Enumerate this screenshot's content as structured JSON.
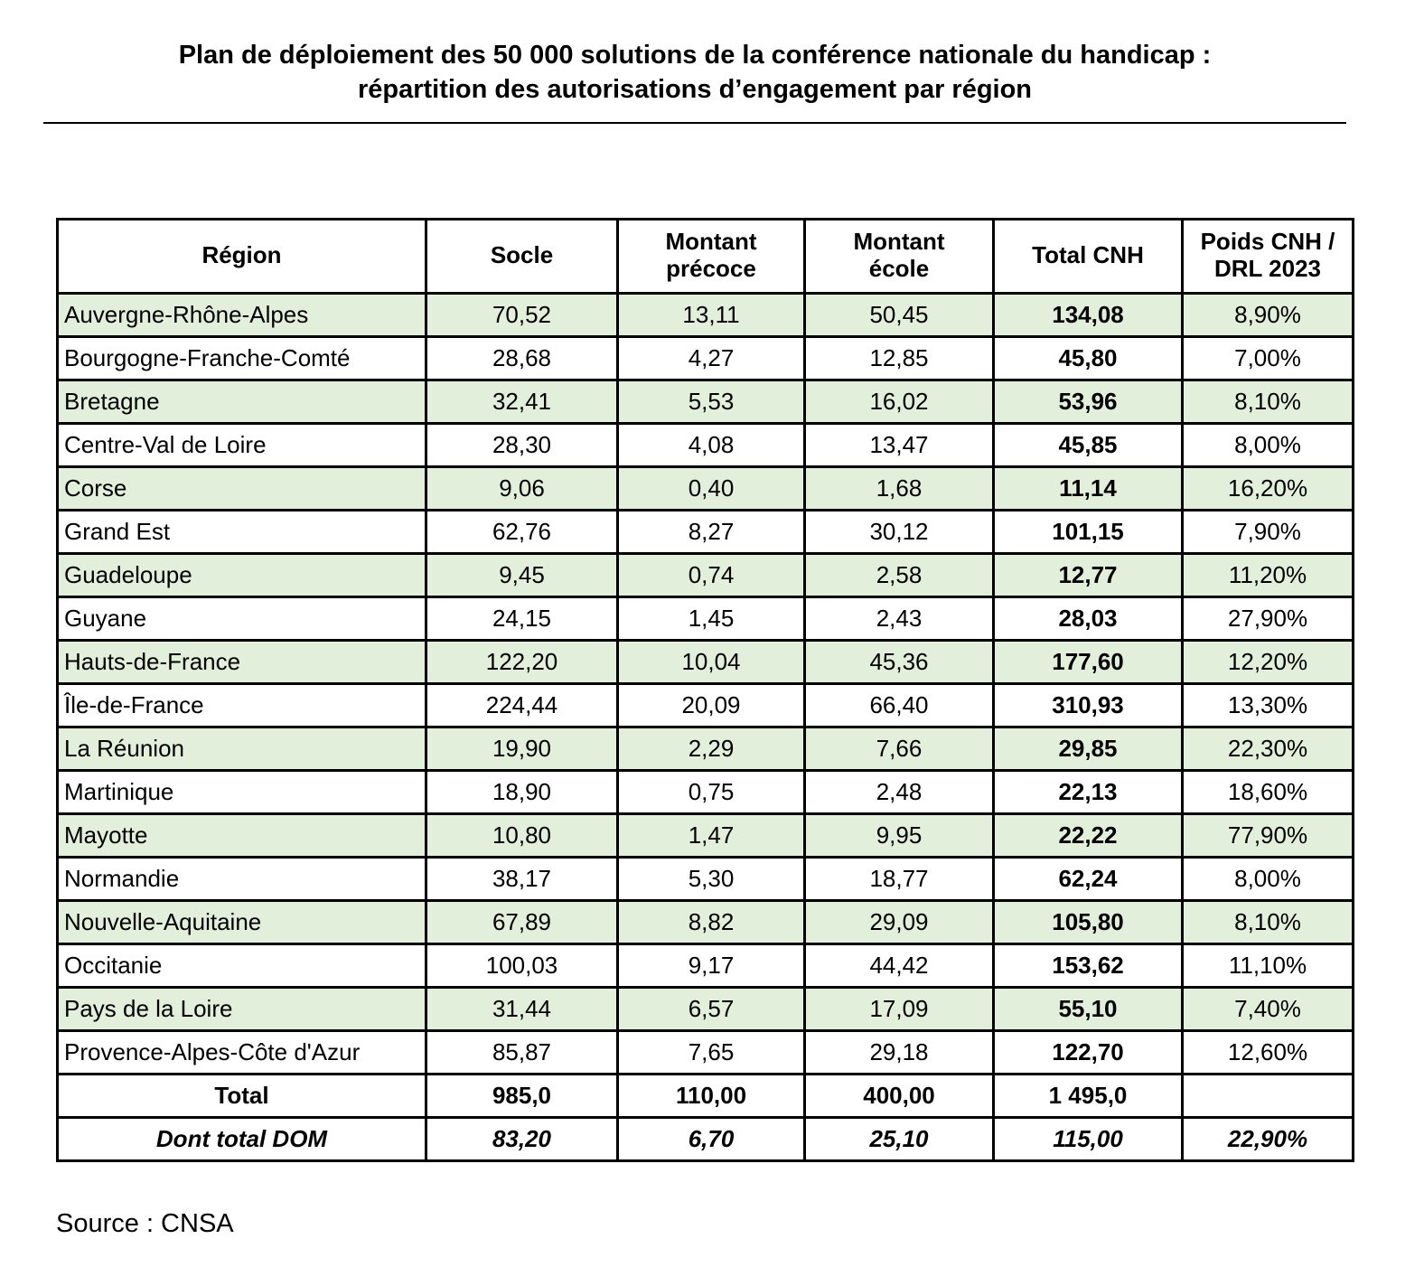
{
  "title": {
    "text": "Plan de déploiement des 50 000 solutions de la conférence nationale du handicap :\nrépartition des autorisations d’engagement par région"
  },
  "table": {
    "columns": {
      "region": "Région",
      "socle": "Socle",
      "precoce": "Montant\nprécoce",
      "ecole": "Montant\nécole",
      "total": "Total CNH",
      "poids": "Poids CNH /\nDRL 2023"
    },
    "rows": [
      {
        "region": "Auvergne-Rhône-Alpes",
        "socle": "70,52",
        "precoce": "13,11",
        "ecole": "50,45",
        "total": "134,08",
        "poids": "8,90%",
        "shaded": true
      },
      {
        "region": "Bourgogne-Franche-Comté",
        "socle": "28,68",
        "precoce": "4,27",
        "ecole": "12,85",
        "total": "45,80",
        "poids": "7,00%",
        "shaded": false
      },
      {
        "region": "Bretagne",
        "socle": "32,41",
        "precoce": "5,53",
        "ecole": "16,02",
        "total": "53,96",
        "poids": "8,10%",
        "shaded": true
      },
      {
        "region": "Centre-Val de Loire",
        "socle": "28,30",
        "precoce": "4,08",
        "ecole": "13,47",
        "total": "45,85",
        "poids": "8,00%",
        "shaded": false
      },
      {
        "region": "Corse",
        "socle": "9,06",
        "precoce": "0,40",
        "ecole": "1,68",
        "total": "11,14",
        "poids": "16,20%",
        "shaded": true
      },
      {
        "region": "Grand Est",
        "socle": "62,76",
        "precoce": "8,27",
        "ecole": "30,12",
        "total": "101,15",
        "poids": "7,90%",
        "shaded": false
      },
      {
        "region": "Guadeloupe",
        "socle": "9,45",
        "precoce": "0,74",
        "ecole": "2,58",
        "total": "12,77",
        "poids": "11,20%",
        "shaded": true
      },
      {
        "region": "Guyane",
        "socle": "24,15",
        "precoce": "1,45",
        "ecole": "2,43",
        "total": "28,03",
        "poids": "27,90%",
        "shaded": false
      },
      {
        "region": "Hauts-de-France",
        "socle": "122,20",
        "precoce": "10,04",
        "ecole": "45,36",
        "total": "177,60",
        "poids": "12,20%",
        "shaded": true
      },
      {
        "region": "Île-de-France",
        "socle": "224,44",
        "precoce": "20,09",
        "ecole": "66,40",
        "total": "310,93",
        "poids": "13,30%",
        "shaded": false
      },
      {
        "region": "La Réunion",
        "socle": "19,90",
        "precoce": "2,29",
        "ecole": "7,66",
        "total": "29,85",
        "poids": "22,30%",
        "shaded": true
      },
      {
        "region": "Martinique",
        "socle": "18,90",
        "precoce": "0,75",
        "ecole": "2,48",
        "total": "22,13",
        "poids": "18,60%",
        "shaded": false
      },
      {
        "region": "Mayotte",
        "socle": "10,80",
        "precoce": "1,47",
        "ecole": "9,95",
        "total": "22,22",
        "poids": "77,90%",
        "shaded": true
      },
      {
        "region": "Normandie",
        "socle": "38,17",
        "precoce": "5,30",
        "ecole": "18,77",
        "total": "62,24",
        "poids": "8,00%",
        "shaded": false
      },
      {
        "region": "Nouvelle-Aquitaine",
        "socle": "67,89",
        "precoce": "8,82",
        "ecole": "29,09",
        "total": "105,80",
        "poids": "8,10%",
        "shaded": true
      },
      {
        "region": "Occitanie",
        "socle": "100,03",
        "precoce": "9,17",
        "ecole": "44,42",
        "total": "153,62",
        "poids": "11,10%",
        "shaded": false
      },
      {
        "region": "Pays de la Loire",
        "socle": "31,44",
        "precoce": "6,57",
        "ecole": "17,09",
        "total": "55,10",
        "poids": "7,40%",
        "shaded": true
      },
      {
        "region": "Provence-Alpes-Côte d'Azur",
        "socle": "85,87",
        "precoce": "7,65",
        "ecole": "29,18",
        "total": "122,70",
        "poids": "12,60%",
        "shaded": false
      }
    ],
    "total_row": {
      "label": "Total",
      "socle": "985,0",
      "precoce": "110,00",
      "ecole": "400,00",
      "total": "1 495,0",
      "poids": ""
    },
    "dom_row": {
      "label": "Dont total DOM",
      "socle": "83,20",
      "precoce": "6,70",
      "ecole": "25,10",
      "total": "115,00",
      "poids": "22,90%"
    }
  },
  "source": "Source : CNSA",
  "colors": {
    "row_shaded": "#E2EFDA",
    "row_total": "#D9D9D9",
    "border": "#000000"
  }
}
